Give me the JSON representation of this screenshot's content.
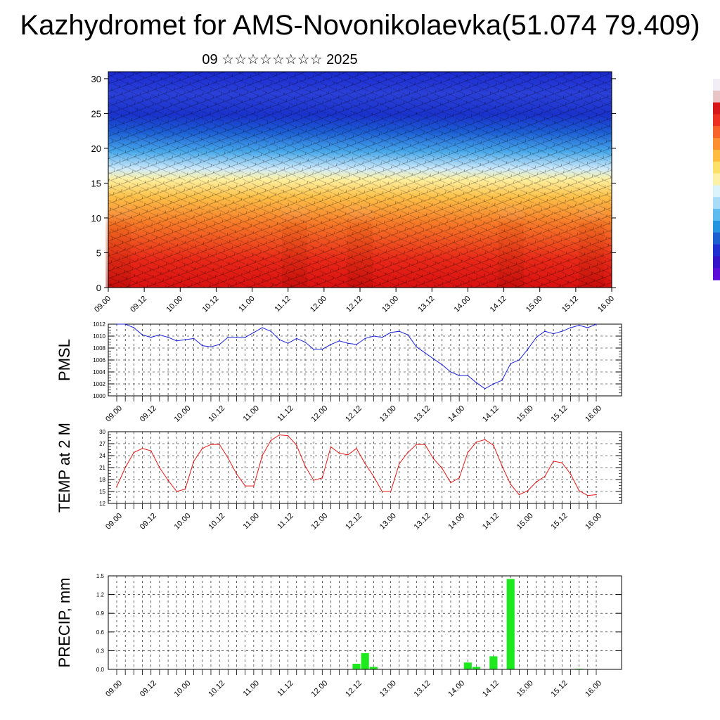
{
  "title": "Kazhydromet for AMS-Novonikolaevka(51.074 79.409)",
  "subtitle": "09 ☆☆☆☆☆☆☆☆ 2025",
  "colorbar": {
    "colors": [
      "#f2eef6",
      "#e8c4c4",
      "#d81818",
      "#ee3020",
      "#f86428",
      "#fc9030",
      "#fdbc40",
      "#fde068",
      "#fff0a8",
      "#dcf2fc",
      "#a8dcf8",
      "#5cbcf0",
      "#2494e0",
      "#1c60d0",
      "#2030d0",
      "#3414c8",
      "#5a0ed8"
    ]
  },
  "chart_data": [
    {
      "id": "profile",
      "type": "heatmap",
      "x_ticks": [
        "09.00",
        "09.12",
        "10.00",
        "10.12",
        "11.00",
        "11.12",
        "12.00",
        "12.12",
        "13.00",
        "13.12",
        "14.00",
        "14.12",
        "15.00",
        "15.12",
        "16.00"
      ],
      "y_ticks": [
        0,
        5,
        10,
        15,
        20,
        25,
        30
      ],
      "ylim": [
        0,
        31
      ],
      "colors": {
        "low": "#c81010",
        "mid": "#fde880",
        "high": "#1838d8"
      }
    },
    {
      "id": "pmsl",
      "type": "line",
      "ylabel": "PMSL",
      "ylim": [
        1000,
        1012
      ],
      "y_ticks": [
        1000,
        1002,
        1004,
        1006,
        1008,
        1010,
        1012
      ],
      "x_ticks": [
        "09.00",
        "09.12",
        "10.00",
        "10.12",
        "11.00",
        "11.12",
        "12.00",
        "12.12",
        "13.00",
        "13.12",
        "14.00",
        "14.12",
        "15.00",
        "15.12",
        "16.00"
      ],
      "color": "#1a22d6",
      "values": [
        1012.0,
        1012.0,
        1011.4,
        1010.2,
        1009.8,
        1010.2,
        1009.8,
        1009.2,
        1009.4,
        1009.6,
        1008.4,
        1008.2,
        1008.6,
        1009.8,
        1009.8,
        1009.8,
        1010.6,
        1011.4,
        1010.8,
        1009.4,
        1008.8,
        1009.6,
        1009.0,
        1007.8,
        1007.8,
        1008.6,
        1009.2,
        1008.8,
        1008.6,
        1009.6,
        1010.0,
        1009.8,
        1010.6,
        1010.8,
        1010.2,
        1008.2,
        1007.2,
        1006.2,
        1005.2,
        1004.0,
        1003.4,
        1003.4,
        1002.2,
        1001.2,
        1002.0,
        1002.6,
        1005.4,
        1006.0,
        1007.8,
        1009.8,
        1010.8,
        1010.4,
        1010.8,
        1011.4,
        1011.8,
        1011.4,
        1012.0
      ]
    },
    {
      "id": "temp",
      "type": "line",
      "ylabel": "TEMP at 2 M",
      "ylim": [
        12,
        30
      ],
      "y_ticks": [
        12,
        15,
        18,
        21,
        24,
        27,
        30
      ],
      "x_ticks": [
        "09.00",
        "09.12",
        "10.00",
        "10.12",
        "11.00",
        "11.12",
        "12.00",
        "12.12",
        "13.00",
        "13.12",
        "14.00",
        "14.12",
        "15.00",
        "15.12",
        "16.00"
      ],
      "color": "#e01818",
      "values": [
        16.2,
        21.0,
        24.8,
        25.8,
        25.2,
        21.0,
        17.8,
        15.0,
        15.6,
        22.6,
        25.8,
        26.8,
        26.8,
        23.4,
        19.4,
        16.4,
        16.4,
        24.0,
        27.8,
        29.2,
        29.0,
        26.6,
        21.4,
        17.8,
        18.4,
        26.2,
        24.6,
        24.2,
        25.8,
        22.0,
        18.8,
        15.0,
        15.0,
        22.0,
        24.8,
        26.8,
        26.8,
        23.2,
        20.8,
        17.2,
        18.4,
        24.8,
        27.4,
        28.0,
        26.6,
        21.4,
        16.8,
        14.2,
        15.2,
        17.4,
        18.8,
        22.6,
        22.2,
        19.4,
        15.2,
        14.0,
        14.2
      ]
    },
    {
      "id": "precip",
      "type": "bar",
      "ylabel": "PRECIP, mm",
      "ylim": [
        0,
        1.5
      ],
      "y_ticks": [
        "0.0",
        "0.3",
        "0.6",
        "0.9",
        "1.2",
        "1.5"
      ],
      "x_ticks": [
        "09.00",
        "09.12",
        "10.00",
        "10.12",
        "11.00",
        "11.12",
        "12.00",
        "12.12",
        "13.00",
        "13.12",
        "14.00",
        "14.12",
        "15.00",
        "15.12",
        "16.00"
      ],
      "color": "#1ee81e",
      "values": [
        0,
        0,
        0,
        0,
        0,
        0,
        0,
        0,
        0,
        0,
        0,
        0,
        0,
        0,
        0,
        0,
        0,
        0,
        0,
        0,
        0,
        0,
        0,
        0,
        0,
        0,
        0,
        0,
        0.09,
        0.26,
        0.04,
        0,
        0,
        0,
        0,
        0,
        0,
        0,
        0,
        0,
        0,
        0.11,
        0.04,
        0,
        0.21,
        0,
        1.45,
        0,
        0,
        0,
        0,
        0,
        0,
        0,
        0.01,
        0,
        0
      ]
    }
  ]
}
